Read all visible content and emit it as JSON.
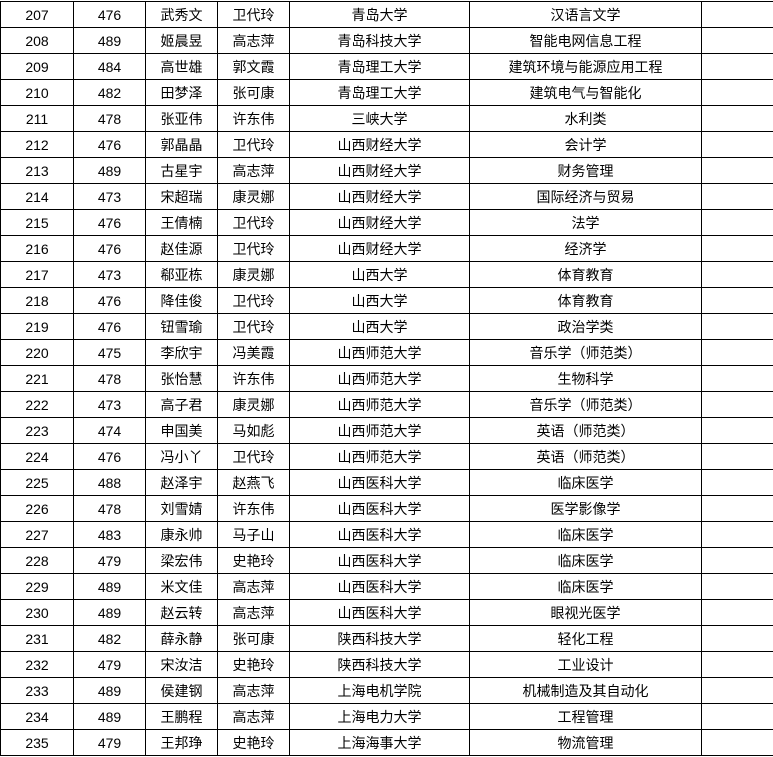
{
  "rows": [
    [
      "207",
      "476",
      "武秀文",
      "卫代玲",
      "青岛大学",
      "汉语言文学",
      ""
    ],
    [
      "208",
      "489",
      "姬晨昱",
      "高志萍",
      "青岛科技大学",
      "智能电网信息工程",
      ""
    ],
    [
      "209",
      "484",
      "高世雄",
      "郭文霞",
      "青岛理工大学",
      "建筑环境与能源应用工程",
      ""
    ],
    [
      "210",
      "482",
      "田梦泽",
      "张可康",
      "青岛理工大学",
      "建筑电气与智能化",
      ""
    ],
    [
      "211",
      "478",
      "张亚伟",
      "许东伟",
      "三峡大学",
      "水利类",
      ""
    ],
    [
      "212",
      "476",
      "郭晶晶",
      "卫代玲",
      "山西财经大学",
      "会计学",
      ""
    ],
    [
      "213",
      "489",
      "古星宇",
      "高志萍",
      "山西财经大学",
      "财务管理",
      ""
    ],
    [
      "214",
      "473",
      "宋超瑞",
      "康灵娜",
      "山西财经大学",
      "国际经济与贸易",
      ""
    ],
    [
      "215",
      "476",
      "王倩楠",
      "卫代玲",
      "山西财经大学",
      "法学",
      ""
    ],
    [
      "216",
      "476",
      "赵佳源",
      "卫代玲",
      "山西财经大学",
      "经济学",
      ""
    ],
    [
      "217",
      "473",
      "郗亚栋",
      "康灵娜",
      "山西大学",
      "体育教育",
      ""
    ],
    [
      "218",
      "476",
      "降佳俊",
      "卫代玲",
      "山西大学",
      "体育教育",
      ""
    ],
    [
      "219",
      "476",
      "钮雪瑜",
      "卫代玲",
      "山西大学",
      "政治学类",
      ""
    ],
    [
      "220",
      "475",
      "李欣宇",
      "冯美霞",
      "山西师范大学",
      "音乐学（师范类）",
      ""
    ],
    [
      "221",
      "478",
      "张怡慧",
      "许东伟",
      "山西师范大学",
      "生物科学",
      ""
    ],
    [
      "222",
      "473",
      "高子君",
      "康灵娜",
      "山西师范大学",
      "音乐学（师范类）",
      ""
    ],
    [
      "223",
      "474",
      "申国美",
      "马如彪",
      "山西师范大学",
      "英语（师范类）",
      ""
    ],
    [
      "224",
      "476",
      "冯小丫",
      "卫代玲",
      "山西师范大学",
      "英语（师范类）",
      ""
    ],
    [
      "225",
      "488",
      "赵泽宇",
      "赵燕飞",
      "山西医科大学",
      "临床医学",
      ""
    ],
    [
      "226",
      "478",
      "刘雪婧",
      "许东伟",
      "山西医科大学",
      "医学影像学",
      ""
    ],
    [
      "227",
      "483",
      "康永帅",
      "马子山",
      "山西医科大学",
      "临床医学",
      ""
    ],
    [
      "228",
      "479",
      "梁宏伟",
      "史艳玲",
      "山西医科大学",
      "临床医学",
      ""
    ],
    [
      "229",
      "489",
      "米文佳",
      "高志萍",
      "山西医科大学",
      "临床医学",
      ""
    ],
    [
      "230",
      "489",
      "赵云转",
      "高志萍",
      "山西医科大学",
      "眼视光医学",
      ""
    ],
    [
      "231",
      "482",
      "薛永静",
      "张可康",
      "陕西科技大学",
      "轻化工程",
      ""
    ],
    [
      "232",
      "479",
      "宋汝洁",
      "史艳玲",
      "陕西科技大学",
      "工业设计",
      ""
    ],
    [
      "233",
      "489",
      "侯建钢",
      "高志萍",
      "上海电机学院",
      "机械制造及其自动化",
      ""
    ],
    [
      "234",
      "489",
      "王鹏程",
      "高志萍",
      "上海电力大学",
      "工程管理",
      ""
    ],
    [
      "235",
      "479",
      "王邦琤",
      "史艳玲",
      "上海海事大学",
      "物流管理",
      ""
    ]
  ]
}
